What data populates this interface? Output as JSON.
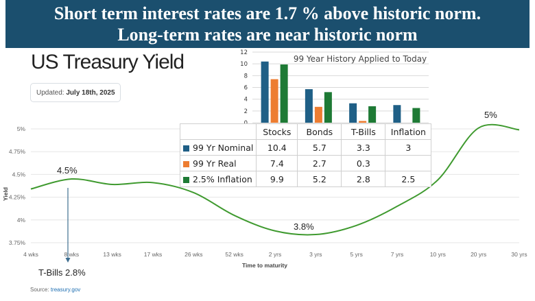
{
  "banner": {
    "line1": "Short term interest rates are 1.7 % above historic norm.",
    "line2": "Long-term rates are near historic norm"
  },
  "header": {
    "title": "US Treasury Yield",
    "updated_label": "Updated:",
    "updated_date": "July 18th, 2025"
  },
  "source": {
    "label": "Source:",
    "link": "treasury.gov"
  },
  "colors": {
    "banner": "#1b4f6e",
    "curve": "#3f9a2f",
    "nominal": "#1f5f86",
    "real": "#ed7d31",
    "inflation": "#1e7a35"
  },
  "chart_data": [
    {
      "type": "line",
      "title": "US Treasury Yield",
      "xlabel": "Time to maturity",
      "ylabel": "Yield",
      "categories": [
        "4 wks",
        "8 wks",
        "13 wks",
        "17 wks",
        "26 wks",
        "52 wks",
        "2 yrs",
        "3 yrs",
        "5 yrs",
        "7 yrs",
        "10 yrs",
        "20 yrs",
        "30 yrs"
      ],
      "values": [
        4.34,
        4.45,
        4.39,
        4.41,
        4.3,
        4.05,
        3.88,
        3.84,
        3.94,
        4.15,
        4.44,
        5.01,
        4.99
      ],
      "yticks": [
        "3.75%",
        "4%",
        "4.25%",
        "4.5%",
        "4.75%",
        "5%"
      ],
      "ylim": [
        3.75,
        5.0
      ],
      "annotations": [
        {
          "text": "4.5%"
        },
        {
          "text": "3.8%"
        },
        {
          "text": "5%"
        },
        {
          "text": "T-Bills 2.8%"
        }
      ]
    },
    {
      "type": "bar",
      "title": "99 Year History Applied to Today",
      "categories": [
        "Stocks",
        "Bonds",
        "T-Bills",
        "Inflation"
      ],
      "yticks": [
        "0",
        "2",
        "4",
        "6",
        "8",
        "10",
        "12"
      ],
      "ylim": [
        0,
        12
      ],
      "series": [
        {
          "name": "99 Yr Nominal",
          "values": [
            10.4,
            5.7,
            3.3,
            3
          ]
        },
        {
          "name": "99 Yr Real",
          "values": [
            7.4,
            2.7,
            0.3,
            null
          ]
        },
        {
          "name": "2.5% Inflation",
          "values": [
            9.9,
            5.2,
            2.8,
            2.5
          ]
        }
      ]
    }
  ]
}
